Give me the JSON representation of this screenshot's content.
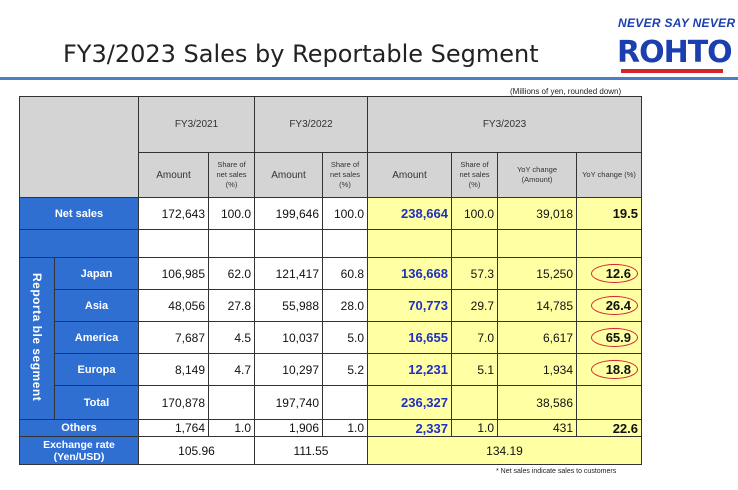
{
  "header": {
    "title": "FY3/2023 Sales by Reportable Segment",
    "slogan": "NEVER SAY NEVER",
    "logo_text": "ROHTO"
  },
  "unit_note": "(Millions of yen, rounded down)",
  "footnote": "* Net sales indicate sales to customers",
  "table": {
    "periods": [
      "FY3/2021",
      "FY3/2022",
      "FY3/2023"
    ],
    "col_amount": "Amount",
    "col_share": "Share of net sales (%)",
    "col_yoy_amount": "YoY change (Amount)",
    "col_yoy_pct": "YoY change (%)",
    "segment_label": "Reporta ble segment",
    "net_sales": {
      "label": "Net sales",
      "fy21_amount": "172,643",
      "fy21_share": "100.0",
      "fy22_amount": "199,646",
      "fy22_share": "100.0",
      "fy23_amount": "238,664",
      "fy23_share": "100.0",
      "yoy_amount": "39,018",
      "yoy_pct": "19.5"
    },
    "segments": [
      {
        "label": "Japan",
        "fy21_amount": "106,985",
        "fy21_share": "62.0",
        "fy22_amount": "121,417",
        "fy22_share": "60.8",
        "fy23_amount": "136,668",
        "fy23_share": "57.3",
        "yoy_amount": "15,250",
        "yoy_pct": "12.6"
      },
      {
        "label": "Asia",
        "fy21_amount": "48,056",
        "fy21_share": "27.8",
        "fy22_amount": "55,988",
        "fy22_share": "28.0",
        "fy23_amount": "70,773",
        "fy23_share": "29.7",
        "yoy_amount": "14,785",
        "yoy_pct": "26.4"
      },
      {
        "label": "America",
        "fy21_amount": "7,687",
        "fy21_share": "4.5",
        "fy22_amount": "10,037",
        "fy22_share": "5.0",
        "fy23_amount": "16,655",
        "fy23_share": "7.0",
        "yoy_amount": "6,617",
        "yoy_pct": "65.9"
      },
      {
        "label": "Europa",
        "fy21_amount": "8,149",
        "fy21_share": "4.7",
        "fy22_amount": "10,297",
        "fy22_share": "5.2",
        "fy23_amount": "12,231",
        "fy23_share": "5.1",
        "yoy_amount": "1,934",
        "yoy_pct": "18.8"
      }
    ],
    "total": {
      "label": "Total",
      "fy21_amount": "170,878",
      "fy22_amount": "197,740",
      "fy23_amount": "236,327",
      "yoy_amount": "38,586"
    },
    "others": {
      "label": "Others",
      "fy21_amount": "1,764",
      "fy21_share": "1.0",
      "fy22_amount": "1,906",
      "fy22_share": "1.0",
      "fy23_amount": "2,337",
      "fy23_share": "1.0",
      "yoy_amount": "431",
      "yoy_pct": "22.6"
    },
    "exchange": {
      "label": "Exchange rate (Yen/USD)",
      "fy21": "105.96",
      "fy22": "111.55",
      "fy23": "134.19"
    }
  }
}
